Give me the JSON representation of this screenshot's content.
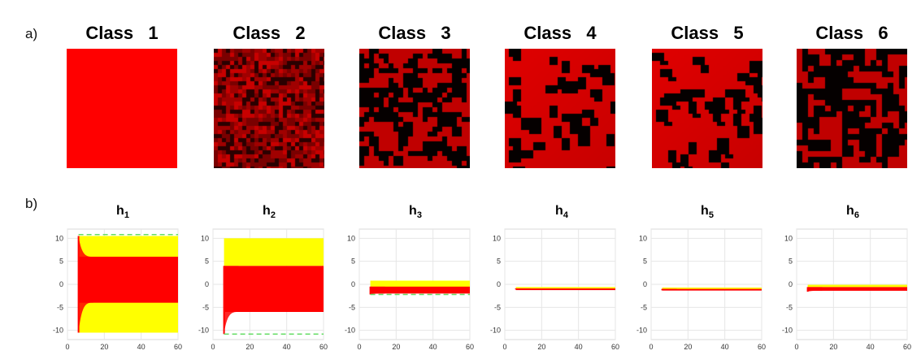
{
  "panel_labels": {
    "a": "a)",
    "b": "b)"
  },
  "texture_titles": [
    "Class   1",
    "Class   2",
    "Class   3",
    "Class   4",
    "Class   5",
    "Class   6"
  ],
  "colors": {
    "red": "#ff0000",
    "dark_red": "#7a0000",
    "black": "#050000",
    "yellow": "#ffff00",
    "green_dashed": "#66dd66"
  },
  "chart_data": [
    {
      "type": "line",
      "title": "h",
      "subscript": "1",
      "xlim": [
        0,
        60
      ],
      "ylim": [
        -12,
        12
      ],
      "xticks": [
        0,
        20,
        40,
        60
      ],
      "yticks": [
        10,
        5,
        0,
        -5,
        -10
      ],
      "grid": true,
      "x_start": 6,
      "x_end": 60,
      "yellow_band": [
        -10.5,
        10.5
      ],
      "red_band": [
        -4,
        6
      ],
      "red_initial": [
        -10.5,
        10.5
      ],
      "green_dashed_y": [
        10.8
      ]
    },
    {
      "type": "line",
      "title": "h",
      "subscript": "2",
      "xlim": [
        0,
        60
      ],
      "ylim": [
        -12,
        12
      ],
      "xticks": [
        0,
        20,
        40,
        60
      ],
      "yticks": [
        10,
        5,
        0,
        -5,
        -10
      ],
      "grid": true,
      "x_start": 6,
      "x_end": 60,
      "yellow_band": [
        4,
        10
      ],
      "red_band": [
        -6,
        4
      ],
      "red_initial": [
        -10.8,
        4
      ],
      "green_dashed_y": [
        -10.8
      ]
    },
    {
      "type": "line",
      "title": "h",
      "subscript": "3",
      "xlim": [
        0,
        60
      ],
      "ylim": [
        -12,
        12
      ],
      "xticks": [
        0,
        20,
        40,
        60
      ],
      "yticks": [
        10,
        5,
        0,
        -5,
        -10
      ],
      "grid": true,
      "x_start": 6,
      "x_end": 60,
      "yellow_band": [
        -1.2,
        0.8
      ],
      "red_band": [
        -2,
        -0.5
      ],
      "red_initial": [
        -2.2,
        -0.5
      ],
      "green_dashed_y": [
        -2.2
      ]
    },
    {
      "type": "line",
      "title": "h",
      "subscript": "4",
      "xlim": [
        0,
        60
      ],
      "ylim": [
        -12,
        12
      ],
      "xticks": [
        0,
        20,
        40,
        60
      ],
      "yticks": [
        10,
        5,
        0,
        -5,
        -10
      ],
      "grid": true,
      "x_start": 6,
      "x_end": 60,
      "yellow_band": [
        -0.9,
        -0.6
      ],
      "red_band": [
        -1.1,
        -0.9
      ],
      "red_initial": [
        -1.1,
        -0.9
      ],
      "green_dashed_y": []
    },
    {
      "type": "line",
      "title": "h",
      "subscript": "5",
      "xlim": [
        0,
        60
      ],
      "ylim": [
        -12,
        12
      ],
      "xticks": [
        0,
        20,
        40,
        60
      ],
      "yticks": [
        10,
        5,
        0,
        -5,
        -10
      ],
      "grid": true,
      "x_start": 6,
      "x_end": 60,
      "yellow_band": [
        -1.0,
        -0.7
      ],
      "red_band": [
        -1.3,
        -1.0
      ],
      "red_initial": [
        -1.3,
        -1.0
      ],
      "green_dashed_y": []
    },
    {
      "type": "line",
      "title": "h",
      "subscript": "6",
      "xlim": [
        0,
        60
      ],
      "ylim": [
        -12,
        12
      ],
      "xticks": [
        0,
        20,
        40,
        60
      ],
      "yticks": [
        10,
        5,
        0,
        -5,
        -10
      ],
      "grid": true,
      "x_start": 6,
      "x_end": 60,
      "yellow_band": [
        -0.6,
        -0.1
      ],
      "red_band": [
        -1.4,
        -0.6
      ],
      "red_initial": [
        -1.6,
        -0.6
      ],
      "green_dashed_y": []
    }
  ]
}
